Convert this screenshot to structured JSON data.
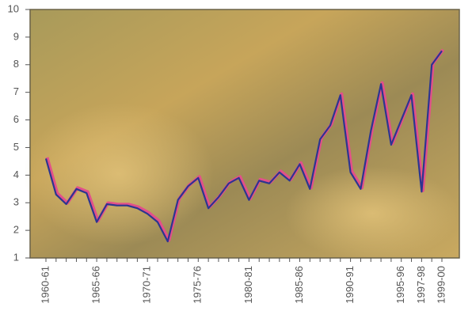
{
  "chart_data": {
    "type": "line",
    "categories": [
      "1960-61",
      null,
      null,
      null,
      null,
      "1965-66",
      null,
      null,
      null,
      null,
      "1970-71",
      null,
      null,
      null,
      null,
      "1975-76",
      null,
      null,
      null,
      null,
      "1980-81",
      null,
      null,
      null,
      null,
      "1985-86",
      null,
      null,
      null,
      null,
      "1990-91",
      null,
      null,
      null,
      null,
      "1995-96",
      null,
      "1997-98",
      null,
      "1999-00"
    ],
    "series": [
      {
        "color": "#2c3590",
        "values": [
          4.6,
          3.3,
          2.95,
          3.5,
          3.35,
          2.3,
          2.95,
          2.9,
          2.9,
          2.8,
          2.6,
          2.3,
          1.6,
          3.1,
          3.6,
          3.9,
          2.8,
          3.2,
          3.7,
          3.9,
          3.1,
          3.8,
          3.7,
          4.1,
          3.8,
          4.4,
          3.5,
          5.3,
          5.8,
          6.9,
          4.1,
          3.5,
          5.6,
          7.3,
          5.1,
          6.0,
          6.9,
          3.4,
          8.0,
          8.5
        ]
      }
    ],
    "shadow_color": "#e2508a",
    "ylim": [
      1,
      10
    ],
    "yticks": [
      1,
      2,
      3,
      4,
      5,
      6,
      7,
      8,
      9,
      10
    ]
  }
}
